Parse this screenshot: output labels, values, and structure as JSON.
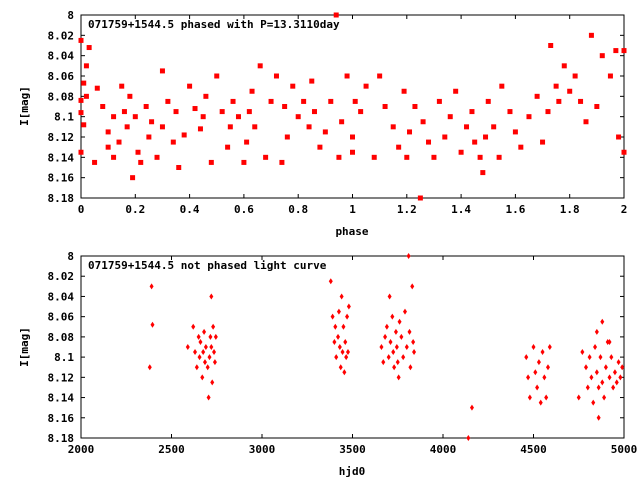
{
  "chart_data": [
    {
      "type": "scatter",
      "title": "071759+1544.5 phased with P=13.3110day",
      "xlabel": "phase",
      "ylabel": "I[mag]",
      "xlim": [
        0,
        2
      ],
      "ylim": [
        8.18,
        8.0
      ],
      "y_inverted": true,
      "x_ticks": [
        "0",
        "0.2",
        "0.4",
        "0.6",
        "0.8",
        "1",
        "1.2",
        "1.4",
        "1.6",
        "1.8",
        "2"
      ],
      "y_ticks": [
        "8",
        "8.02",
        "8.04",
        "8.06",
        "8.08",
        "8.1",
        "8.12",
        "8.14",
        "8.16",
        "8.18"
      ],
      "marker": "filled-square",
      "color": "#ff0000",
      "grid": false,
      "points": [
        [
          0.0,
          8.025
        ],
        [
          0.0,
          8.084
        ],
        [
          0.0,
          8.096
        ],
        [
          0.0,
          8.135
        ],
        [
          0.01,
          8.067
        ],
        [
          0.01,
          8.108
        ],
        [
          0.02,
          8.05
        ],
        [
          0.02,
          8.08
        ],
        [
          0.03,
          8.032
        ],
        [
          0.05,
          8.145
        ],
        [
          0.06,
          8.072
        ],
        [
          0.08,
          8.09
        ],
        [
          0.1,
          8.13
        ],
        [
          0.1,
          8.115
        ],
        [
          0.12,
          8.1
        ],
        [
          0.12,
          8.14
        ],
        [
          0.14,
          8.125
        ],
        [
          0.15,
          8.07
        ],
        [
          0.16,
          8.095
        ],
        [
          0.17,
          8.11
        ],
        [
          0.18,
          8.08
        ],
        [
          0.19,
          8.16
        ],
        [
          0.2,
          8.1
        ],
        [
          0.21,
          8.135
        ],
        [
          0.22,
          8.145
        ],
        [
          0.24,
          8.09
        ],
        [
          0.25,
          8.12
        ],
        [
          0.26,
          8.105
        ],
        [
          0.28,
          8.14
        ],
        [
          0.3,
          8.055
        ],
        [
          0.3,
          8.11
        ],
        [
          0.32,
          8.085
        ],
        [
          0.34,
          8.125
        ],
        [
          0.35,
          8.095
        ],
        [
          0.36,
          8.15
        ],
        [
          0.38,
          8.118
        ],
        [
          0.4,
          8.07
        ],
        [
          0.42,
          8.092
        ],
        [
          0.44,
          8.112
        ],
        [
          0.45,
          8.1
        ],
        [
          0.46,
          8.08
        ],
        [
          0.48,
          8.145
        ],
        [
          0.5,
          8.06
        ],
        [
          0.52,
          8.095
        ],
        [
          0.54,
          8.13
        ],
        [
          0.55,
          8.11
        ],
        [
          0.56,
          8.085
        ],
        [
          0.58,
          8.1
        ],
        [
          0.6,
          8.145
        ],
        [
          0.61,
          8.125
        ],
        [
          0.62,
          8.095
        ],
        [
          0.63,
          8.075
        ],
        [
          0.64,
          8.11
        ],
        [
          0.66,
          8.05
        ],
        [
          0.68,
          8.14
        ],
        [
          0.7,
          8.085
        ],
        [
          0.72,
          8.06
        ],
        [
          0.74,
          8.145
        ],
        [
          0.75,
          8.09
        ],
        [
          0.76,
          8.12
        ],
        [
          0.78,
          8.07
        ],
        [
          0.8,
          8.1
        ],
        [
          0.82,
          8.085
        ],
        [
          0.84,
          8.11
        ],
        [
          0.85,
          8.065
        ],
        [
          0.86,
          8.095
        ],
        [
          0.88,
          8.13
        ],
        [
          0.9,
          8.115
        ],
        [
          0.92,
          8.085
        ],
        [
          0.94,
          8.0
        ],
        [
          0.95,
          8.14
        ],
        [
          0.96,
          8.105
        ],
        [
          0.98,
          8.06
        ],
        [
          1.0,
          8.135
        ],
        [
          1.0,
          8.12
        ],
        [
          1.01,
          8.085
        ],
        [
          1.03,
          8.095
        ],
        [
          1.05,
          8.07
        ],
        [
          1.08,
          8.14
        ],
        [
          1.1,
          8.06
        ],
        [
          1.12,
          8.09
        ],
        [
          1.15,
          8.11
        ],
        [
          1.17,
          8.13
        ],
        [
          1.19,
          8.075
        ],
        [
          1.2,
          8.14
        ],
        [
          1.21,
          8.115
        ],
        [
          1.23,
          8.09
        ],
        [
          1.25,
          8.18
        ],
        [
          1.26,
          8.105
        ],
        [
          1.28,
          8.125
        ],
        [
          1.3,
          8.14
        ],
        [
          1.32,
          8.085
        ],
        [
          1.34,
          8.12
        ],
        [
          1.36,
          8.1
        ],
        [
          1.38,
          8.075
        ],
        [
          1.4,
          8.135
        ],
        [
          1.42,
          8.11
        ],
        [
          1.44,
          8.095
        ],
        [
          1.45,
          8.125
        ],
        [
          1.47,
          8.14
        ],
        [
          1.48,
          8.155
        ],
        [
          1.49,
          8.12
        ],
        [
          1.5,
          8.085
        ],
        [
          1.52,
          8.11
        ],
        [
          1.54,
          8.14
        ],
        [
          1.55,
          8.07
        ],
        [
          1.58,
          8.095
        ],
        [
          1.6,
          8.115
        ],
        [
          1.62,
          8.13
        ],
        [
          1.65,
          8.1
        ],
        [
          1.68,
          8.08
        ],
        [
          1.7,
          8.125
        ],
        [
          1.72,
          8.095
        ],
        [
          1.73,
          8.03
        ],
        [
          1.75,
          8.07
        ],
        [
          1.76,
          8.085
        ],
        [
          1.78,
          8.05
        ],
        [
          1.8,
          8.075
        ],
        [
          1.82,
          8.06
        ],
        [
          1.84,
          8.085
        ],
        [
          1.86,
          8.105
        ],
        [
          1.88,
          8.02
        ],
        [
          1.9,
          8.09
        ],
        [
          1.92,
          8.04
        ],
        [
          1.95,
          8.06
        ],
        [
          1.97,
          8.035
        ],
        [
          1.98,
          8.12
        ],
        [
          2.0,
          8.035
        ],
        [
          2.0,
          8.135
        ]
      ]
    },
    {
      "type": "scatter",
      "title": "071759+1544.5 not phased light curve",
      "xlabel": "hjd0",
      "ylabel": "I[mag]",
      "xlim": [
        2000,
        5000
      ],
      "ylim": [
        8.18,
        8.0
      ],
      "y_inverted": true,
      "x_ticks": [
        "2000",
        "2500",
        "3000",
        "3500",
        "4000",
        "4500",
        "5000"
      ],
      "y_ticks": [
        "8",
        "8.02",
        "8.04",
        "8.06",
        "8.08",
        "8.1",
        "8.12",
        "8.14",
        "8.16",
        "8.18"
      ],
      "marker": "diamond",
      "color": "#ff0000",
      "grid": false,
      "points": [
        [
          2380,
          8.11
        ],
        [
          2390,
          8.03
        ],
        [
          2395,
          8.068
        ],
        [
          2590,
          8.09
        ],
        [
          2620,
          8.07
        ],
        [
          2630,
          8.095
        ],
        [
          2640,
          8.11
        ],
        [
          2650,
          8.08
        ],
        [
          2655,
          8.1
        ],
        [
          2660,
          8.085
        ],
        [
          2670,
          8.12
        ],
        [
          2675,
          8.095
        ],
        [
          2680,
          8.075
        ],
        [
          2685,
          8.105
        ],
        [
          2690,
          8.09
        ],
        [
          2700,
          8.11
        ],
        [
          2705,
          8.14
        ],
        [
          2710,
          8.1
        ],
        [
          2715,
          8.08
        ],
        [
          2720,
          8.09
        ],
        [
          2725,
          8.125
        ],
        [
          2730,
          8.07
        ],
        [
          2735,
          8.095
        ],
        [
          2740,
          8.105
        ],
        [
          2745,
          8.08
        ],
        [
          2720,
          8.04
        ],
        [
          3380,
          8.025
        ],
        [
          3390,
          8.06
        ],
        [
          3400,
          8.085
        ],
        [
          3405,
          8.07
        ],
        [
          3410,
          8.1
        ],
        [
          3420,
          8.08
        ],
        [
          3425,
          8.055
        ],
        [
          3430,
          8.09
        ],
        [
          3435,
          8.11
        ],
        [
          3440,
          8.04
        ],
        [
          3445,
          8.095
        ],
        [
          3450,
          8.07
        ],
        [
          3455,
          8.115
        ],
        [
          3460,
          8.085
        ],
        [
          3465,
          8.1
        ],
        [
          3470,
          8.06
        ],
        [
          3475,
          8.095
        ],
        [
          3480,
          8.05
        ],
        [
          3660,
          8.09
        ],
        [
          3670,
          8.105
        ],
        [
          3680,
          8.08
        ],
        [
          3690,
          8.07
        ],
        [
          3700,
          8.1
        ],
        [
          3705,
          8.04
        ],
        [
          3710,
          8.085
        ],
        [
          3720,
          8.06
        ],
        [
          3725,
          8.095
        ],
        [
          3730,
          8.11
        ],
        [
          3740,
          8.075
        ],
        [
          3745,
          8.09
        ],
        [
          3750,
          8.105
        ],
        [
          3755,
          8.12
        ],
        [
          3760,
          8.065
        ],
        [
          3770,
          8.08
        ],
        [
          3780,
          8.1
        ],
        [
          3790,
          8.055
        ],
        [
          3800,
          8.09
        ],
        [
          3810,
          8.0
        ],
        [
          3815,
          8.075
        ],
        [
          3820,
          8.11
        ],
        [
          3830,
          8.03
        ],
        [
          3835,
          8.085
        ],
        [
          3840,
          8.095
        ],
        [
          4140,
          8.18
        ],
        [
          4160,
          8.15
        ],
        [
          4460,
          8.1
        ],
        [
          4470,
          8.12
        ],
        [
          4480,
          8.14
        ],
        [
          4500,
          8.09
        ],
        [
          4510,
          8.115
        ],
        [
          4520,
          8.13
        ],
        [
          4530,
          8.105
        ],
        [
          4540,
          8.145
        ],
        [
          4550,
          8.095
        ],
        [
          4560,
          8.12
        ],
        [
          4570,
          8.14
        ],
        [
          4580,
          8.11
        ],
        [
          4590,
          8.09
        ],
        [
          4750,
          8.14
        ],
        [
          4770,
          8.095
        ],
        [
          4790,
          8.11
        ],
        [
          4800,
          8.13
        ],
        [
          4810,
          8.1
        ],
        [
          4820,
          8.12
        ],
        [
          4830,
          8.145
        ],
        [
          4840,
          8.09
        ],
        [
          4850,
          8.115
        ],
        [
          4860,
          8.13
        ],
        [
          4870,
          8.1
        ],
        [
          4880,
          8.125
        ],
        [
          4890,
          8.14
        ],
        [
          4900,
          8.11
        ],
        [
          4910,
          8.085
        ],
        [
          4920,
          8.12
        ],
        [
          4930,
          8.1
        ],
        [
          4940,
          8.13
        ],
        [
          4950,
          8.115
        ],
        [
          4960,
          8.125
        ],
        [
          4970,
          8.105
        ],
        [
          4980,
          8.12
        ],
        [
          4990,
          8.11
        ],
        [
          4850,
          8.075
        ],
        [
          4880,
          8.065
        ],
        [
          4920,
          8.085
        ],
        [
          4860,
          8.16
        ]
      ]
    }
  ]
}
